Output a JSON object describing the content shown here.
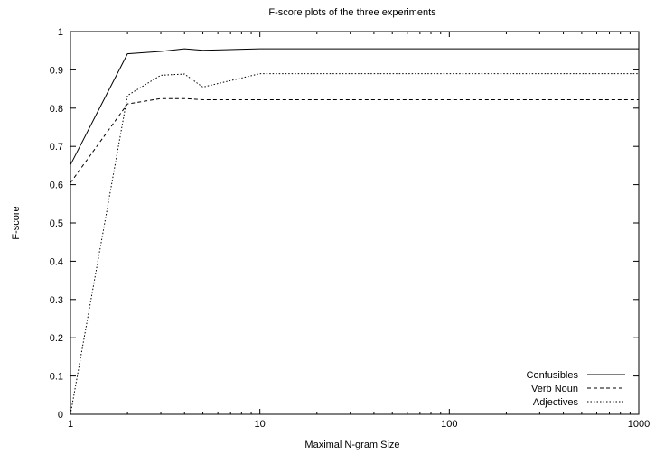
{
  "chart_data": {
    "type": "line",
    "title": "F-score plots of the three experiments",
    "xlabel": "Maximal N-gram Size",
    "ylabel": "F-score",
    "xscale": "log",
    "xlim": [
      1,
      1000
    ],
    "ylim": [
      0,
      1
    ],
    "xticks": [
      1,
      10,
      100,
      1000
    ],
    "xtick_labels": [
      "1",
      "10",
      "100",
      "1000"
    ],
    "yticks": [
      0,
      0.1,
      0.2,
      0.3,
      0.4,
      0.5,
      0.6,
      0.7,
      0.8,
      0.9,
      1
    ],
    "ytick_labels": [
      "0",
      "0.1",
      "0.2",
      "0.3",
      "0.4",
      "0.5",
      "0.6",
      "0.7",
      "0.8",
      "0.9",
      "1"
    ],
    "grid": false,
    "legend_position": "bottom-right",
    "series": [
      {
        "name": "Confusibles",
        "dash": "solid",
        "points": [
          [
            1,
            0.652
          ],
          [
            2,
            0.942
          ],
          [
            3,
            0.948
          ],
          [
            4,
            0.955
          ],
          [
            5,
            0.951
          ],
          [
            10,
            0.955
          ],
          [
            1000,
            0.955
          ]
        ]
      },
      {
        "name": "Verb  Noun",
        "dash": "dashed",
        "points": [
          [
            1,
            0.605
          ],
          [
            2,
            0.811
          ],
          [
            3,
            0.825
          ],
          [
            4,
            0.825
          ],
          [
            5,
            0.822
          ],
          [
            10,
            0.822
          ],
          [
            1000,
            0.822
          ]
        ]
      },
      {
        "name": "Adjectives",
        "dash": "dotted",
        "points": [
          [
            1,
            0.0
          ],
          [
            2,
            0.833
          ],
          [
            3,
            0.886
          ],
          [
            4,
            0.889
          ],
          [
            5,
            0.855
          ],
          [
            10,
            0.89
          ],
          [
            1000,
            0.89
          ]
        ]
      }
    ]
  }
}
